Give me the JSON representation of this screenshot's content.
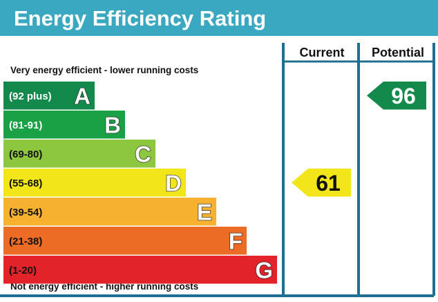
{
  "header": {
    "title": "Energy Efficiency Rating",
    "background": "#3aa8c1"
  },
  "columns": {
    "current": "Current",
    "potential": "Potential",
    "frame_color": "#1f6f92"
  },
  "captions": {
    "top": "Very energy efficient - lower running costs",
    "bottom": "Not energy efficient - higher running costs"
  },
  "chart_data": {
    "type": "bar",
    "categories": [
      "A",
      "B",
      "C",
      "D",
      "E",
      "F",
      "G"
    ],
    "bands": [
      {
        "letter": "A",
        "range": "(92 plus)",
        "min": 92,
        "max": 100,
        "color": "#138a4b",
        "label_color": "#ffffff"
      },
      {
        "letter": "B",
        "range": "(81-91)",
        "min": 81,
        "max": 91,
        "color": "#1aa146",
        "label_color": "#ffffff"
      },
      {
        "letter": "C",
        "range": "(69-80)",
        "min": 69,
        "max": 80,
        "color": "#8dc63f",
        "label_color": "#111111"
      },
      {
        "letter": "D",
        "range": "(55-68)",
        "min": 55,
        "max": 68,
        "color": "#f2e51a",
        "label_color": "#111111"
      },
      {
        "letter": "E",
        "range": "(39-54)",
        "min": 39,
        "max": 54,
        "color": "#f7b130",
        "label_color": "#111111"
      },
      {
        "letter": "F",
        "range": "(21-38)",
        "min": 21,
        "max": 38,
        "color": "#ec6b25",
        "label_color": "#111111"
      },
      {
        "letter": "G",
        "range": "(1-20)",
        "min": 1,
        "max": 20,
        "color": "#e2232a",
        "label_color": "#111111"
      }
    ],
    "series": [
      {
        "name": "Current",
        "value": 61,
        "band": "D",
        "color": "#f2e51a",
        "text_color": "#111111"
      },
      {
        "name": "Potential",
        "value": 96,
        "band": "A",
        "color": "#138a4b",
        "text_color": "#ffffff"
      }
    ]
  }
}
